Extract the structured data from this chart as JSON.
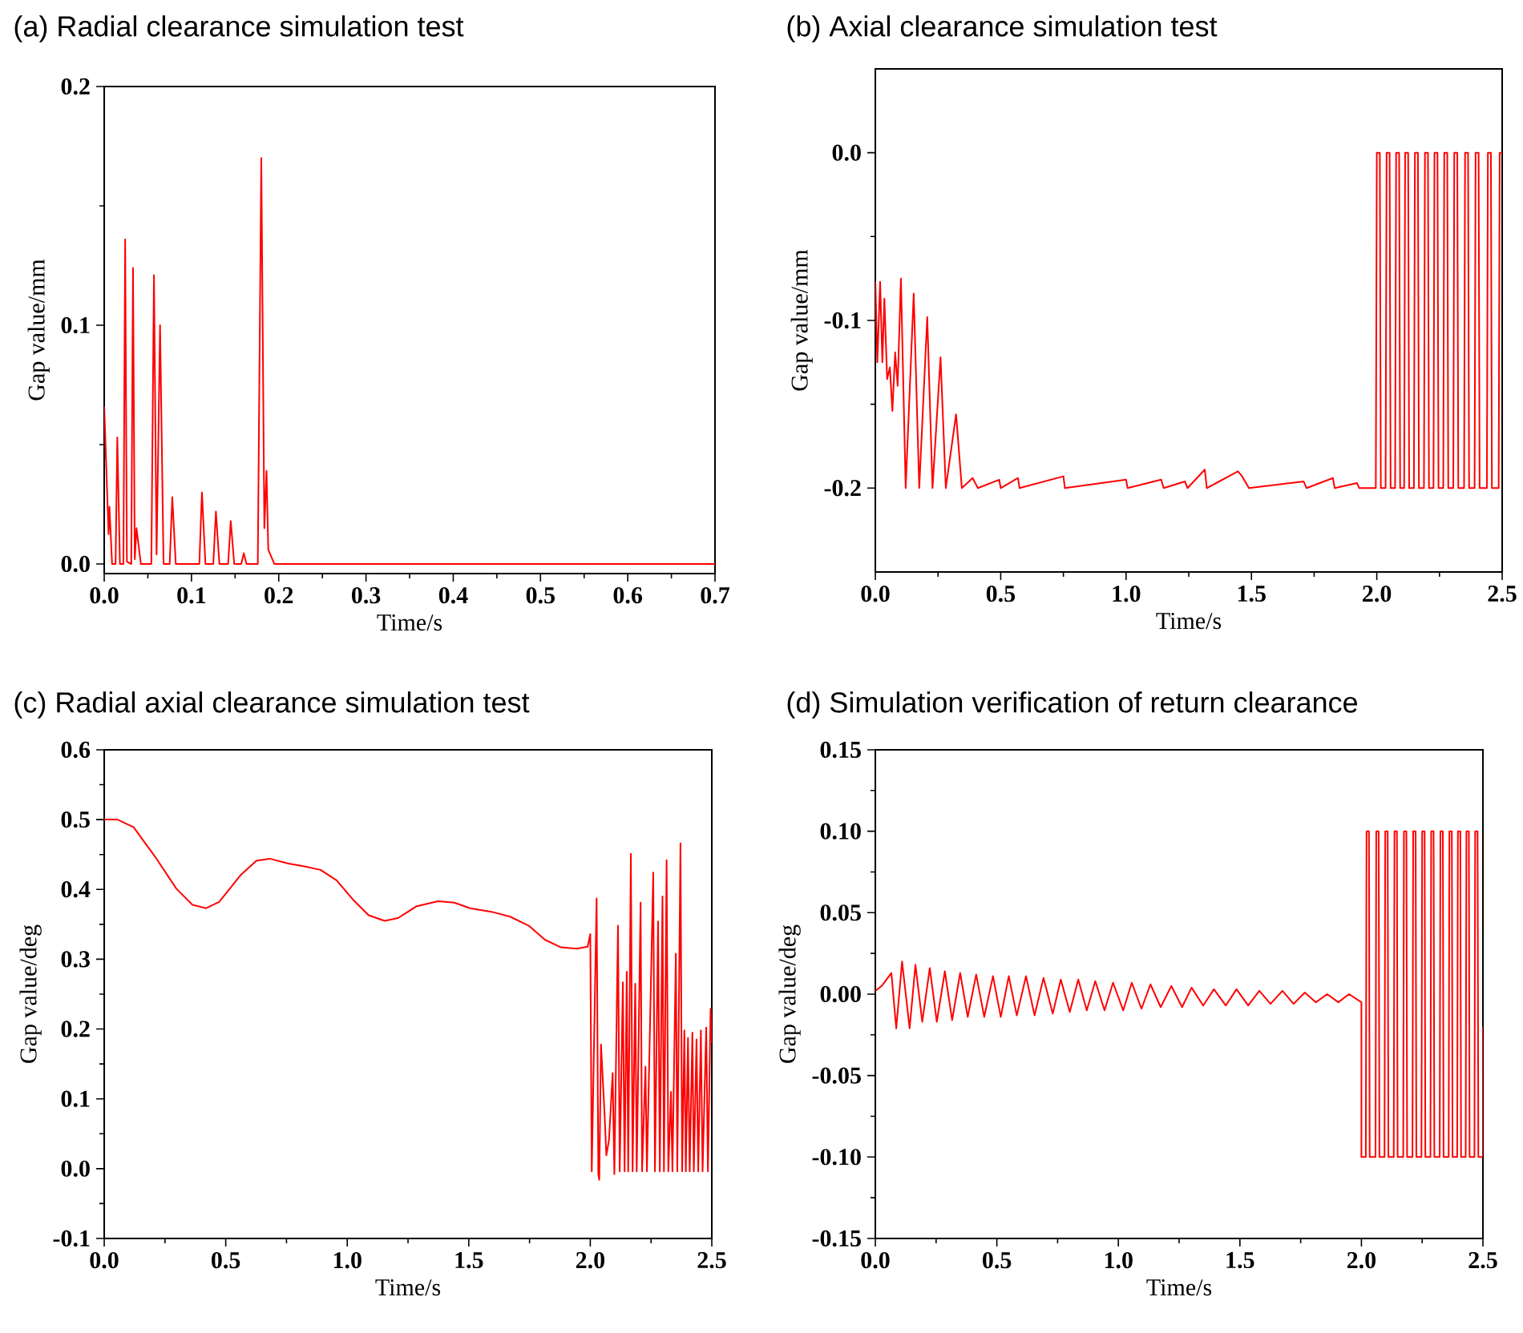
{
  "chart_data": [
    {
      "type": "line",
      "title": "(a) Radial clearance simulation test",
      "xlabel": "Time/s",
      "ylabel": "Gap value/mm",
      "xlim": [
        0,
        0.7
      ],
      "ylim": [
        -0.004,
        0.2
      ],
      "xticks": [
        {
          "value": 0,
          "label": "0.0"
        },
        0.1,
        0.2,
        0.3,
        0.4,
        0.5,
        0.6,
        0.7
      ],
      "yticks": [
        {
          "value": 0,
          "label": "0.0"
        },
        0.1,
        0.2
      ],
      "series": [
        {
          "color": "#ff0000",
          "x": [
            0,
            0.005,
            0.006,
            0.009,
            0.013,
            0.015,
            0.018,
            0.022,
            0.024,
            0.026,
            0.031,
            0.033,
            0.035,
            0.037,
            0.042,
            0.054,
            0.057,
            0.06,
            0.064,
            0.068,
            0.075,
            0.078,
            0.082,
            0.109,
            0.112,
            0.116,
            0.125,
            0.128,
            0.132,
            0.142,
            0.145,
            0.149,
            0.157,
            0.16,
            0.163,
            0.176,
            0.18,
            0.1835,
            0.186,
            0.188,
            0.195,
            0.7
          ],
          "values": [
            0.066,
            0.0125,
            0.024,
            0,
            0,
            0.053,
            0,
            0,
            0.136,
            0.001,
            0,
            0.124,
            0.002,
            0.015,
            0,
            0,
            0.121,
            0.004,
            0.1,
            0,
            0,
            0.028,
            0,
            0,
            0.03,
            0,
            0,
            0.022,
            0,
            0,
            0.018,
            0,
            0,
            0.0045,
            0,
            0,
            0.17,
            0.015,
            0.039,
            0.006,
            0,
            0
          ]
        }
      ]
    },
    {
      "type": "line",
      "title": "(b) Axial clearance simulation test",
      "xlabel": "Time/s",
      "ylabel": "Gap value/mm",
      "xlim": [
        0,
        2.5
      ],
      "ylim": [
        -0.25,
        0.05
      ],
      "xticks": [
        {
          "value": 0,
          "label": "0.0"
        },
        0.5,
        {
          "value": 1,
          "label": "1.0"
        },
        1.5,
        {
          "value": 2,
          "label": "2.0"
        },
        2.5
      ],
      "yticks": [
        -0.2,
        -0.1,
        {
          "value": 0,
          "label": "0.0"
        }
      ],
      "series": [
        {
          "color": "#ff0000",
          "x": [
            0,
            0.008,
            0.019,
            0.028,
            0.036,
            0.047,
            0.058,
            0.068,
            0.079,
            0.089,
            0.102,
            0.121,
            0.153,
            0.175,
            0.207,
            0.228,
            0.26,
            0.281,
            0.322,
            0.345,
            0.388,
            0.409,
            0.494,
            0.5,
            0.569,
            0.575,
            0.75,
            0.756,
            1.0,
            1.006,
            1.14,
            1.15,
            1.235,
            1.245,
            1.314,
            1.322,
            1.446,
            1.463,
            1.49,
            1.708,
            1.72,
            1.825,
            1.832,
            1.921,
            1.93,
            1.996,
            2.0,
            2.012,
            2.016,
            2.035,
            2.039,
            2.051,
            2.055,
            2.073,
            2.077,
            2.089,
            2.093,
            2.109,
            2.113,
            2.125,
            2.129,
            2.148,
            2.152,
            2.164,
            2.168,
            2.188,
            2.192,
            2.204,
            2.208,
            2.226,
            2.23,
            2.242,
            2.246,
            2.265,
            2.269,
            2.281,
            2.285,
            2.305,
            2.309,
            2.321,
            2.325,
            2.348,
            2.352,
            2.364,
            2.368,
            2.39,
            2.394,
            2.406,
            2.41,
            2.439,
            2.443,
            2.455,
            2.459,
            2.486,
            2.49,
            2.5
          ],
          "values": [
            -0.077,
            -0.125,
            -0.077,
            -0.125,
            -0.087,
            -0.135,
            -0.128,
            -0.154,
            -0.119,
            -0.139,
            -0.075,
            -0.2,
            -0.084,
            -0.2,
            -0.098,
            -0.2,
            -0.122,
            -0.2,
            -0.156,
            -0.2,
            -0.194,
            -0.2,
            -0.195,
            -0.2,
            -0.194,
            -0.2,
            -0.193,
            -0.2,
            -0.195,
            -0.2,
            -0.195,
            -0.2,
            -0.196,
            -0.2,
            -0.189,
            -0.2,
            -0.19,
            -0.193,
            -0.2,
            -0.196,
            -0.2,
            -0.194,
            -0.2,
            -0.197,
            -0.2,
            -0.2,
            0,
            0,
            -0.2,
            -0.2,
            0,
            0,
            -0.2,
            -0.2,
            0,
            0,
            -0.2,
            -0.2,
            0,
            0,
            -0.2,
            -0.2,
            0,
            0,
            -0.2,
            -0.2,
            0,
            0,
            -0.2,
            -0.2,
            0,
            0,
            -0.2,
            -0.2,
            0,
            0,
            -0.2,
            -0.2,
            0,
            0,
            -0.2,
            -0.2,
            0,
            0,
            -0.2,
            -0.2,
            0,
            0,
            -0.2,
            -0.2,
            0,
            0,
            -0.2,
            -0.2,
            0,
            0
          ]
        }
      ]
    },
    {
      "type": "line",
      "title": "(c) Radial axial clearance simulation test",
      "xlabel": "Time/s",
      "ylabel": "Gap value/deg",
      "xlim": [
        0,
        2.5
      ],
      "ylim": [
        -0.1,
        0.6
      ],
      "xticks": [
        {
          "value": 0,
          "label": "0.0"
        },
        0.5,
        {
          "value": 1,
          "label": "1.0"
        },
        1.5,
        {
          "value": 2,
          "label": "2.0"
        },
        2.5
      ],
      "yticks": [
        -0.1,
        {
          "value": 0,
          "label": "0.0"
        },
        0.1,
        0.2,
        0.3,
        0.4,
        0.5,
        0.6
      ],
      "series": [
        {
          "color": "#ff0000",
          "x": [
            0,
            0.055,
            0.121,
            0.209,
            0.297,
            0.363,
            0.418,
            0.473,
            0.56,
            0.626,
            0.681,
            0.758,
            0.824,
            0.89,
            0.956,
            1.022,
            1.088,
            1.154,
            1.209,
            1.286,
            1.374,
            1.44,
            1.505,
            1.593,
            1.67,
            1.747,
            1.813,
            1.879,
            1.945,
            1.989,
            2.0,
            2.006,
            2.026,
            2.033,
            2.037,
            2.044,
            2.059,
            2.066,
            2.077,
            2.092,
            2.099,
            2.114,
            2.121,
            2.134,
            2.141,
            2.15,
            2.156,
            2.167,
            2.174,
            2.185,
            2.191,
            2.207,
            2.213,
            2.227,
            2.233,
            2.259,
            2.266,
            2.279,
            2.286,
            2.297,
            2.303,
            2.314,
            2.321,
            2.332,
            2.338,
            2.352,
            2.358,
            2.371,
            2.378,
            2.387,
            2.393,
            2.402,
            2.409,
            2.42,
            2.426,
            2.437,
            2.444,
            2.455,
            2.462,
            2.477,
            2.484,
            2.495,
            2.5
          ],
          "values": [
            0.5,
            0.5,
            0.489,
            0.447,
            0.401,
            0.378,
            0.373,
            0.382,
            0.42,
            0.441,
            0.444,
            0.437,
            0.433,
            0.428,
            0.413,
            0.386,
            0.363,
            0.355,
            0.359,
            0.376,
            0.383,
            0.381,
            0.373,
            0.368,
            0.361,
            0.348,
            0.328,
            0.317,
            0.315,
            0.318,
            0.336,
            -0.004,
            0.387,
            -0.008,
            -0.016,
            0.178,
            0.076,
            0.019,
            0.041,
            0.137,
            -0.008,
            0.348,
            -0.004,
            0.267,
            -0.004,
            0.282,
            -0.004,
            0.451,
            -0.004,
            0.265,
            -0.004,
            0.381,
            -0.004,
            0.146,
            -0.004,
            0.424,
            -0.004,
            0.354,
            -0.004,
            0.39,
            -0.004,
            0.442,
            -0.004,
            0.11,
            -0.004,
            0.308,
            -0.004,
            0.466,
            -0.004,
            0.198,
            -0.004,
            0.187,
            -0.004,
            0.195,
            -0.004,
            0.185,
            -0.004,
            0.198,
            -0.004,
            0.202,
            -0.004,
            0.229,
            0.18
          ]
        }
      ]
    },
    {
      "type": "line",
      "title": "(d) Simulation verification of return clearance",
      "xlabel": "Time/s",
      "ylabel": "Gap value/deg",
      "xlim": [
        0,
        2.5
      ],
      "ylim": [
        -0.15,
        0.15
      ],
      "xticks": [
        {
          "value": 0,
          "label": "0.0"
        },
        0.5,
        {
          "value": 1,
          "label": "1.0"
        },
        1.5,
        {
          "value": 2,
          "label": "2.0"
        },
        2.5
      ],
      "yticks": [
        -0.15,
        {
          "value": -0.1,
          "label": "-0.10"
        },
        -0.05,
        {
          "value": 0,
          "label": "0.00"
        },
        0.05,
        {
          "value": 0.1,
          "label": "0.10"
        },
        0.15
      ],
      "series": [
        {
          "color": "#ff0000",
          "x": [
            0,
            0.026,
            0.066,
            0.086,
            0.11,
            0.141,
            0.165,
            0.193,
            0.224,
            0.253,
            0.286,
            0.316,
            0.349,
            0.38,
            0.415,
            0.448,
            0.484,
            0.516,
            0.549,
            0.582,
            0.62,
            0.655,
            0.692,
            0.73,
            0.763,
            0.8,
            0.835,
            0.87,
            0.905,
            0.943,
            0.978,
            1.02,
            1.055,
            1.095,
            1.132,
            1.174,
            1.218,
            1.262,
            1.301,
            1.349,
            1.393,
            1.442,
            1.486,
            1.534,
            1.58,
            1.626,
            1.675,
            1.721,
            1.767,
            1.813,
            1.859,
            1.905,
            1.949,
            2.0,
            2.0,
            2.018,
            2.021,
            2.031,
            2.034,
            2.058,
            2.061,
            2.071,
            2.074,
            2.095,
            2.098,
            2.108,
            2.111,
            2.133,
            2.136,
            2.146,
            2.149,
            2.172,
            2.175,
            2.185,
            2.188,
            2.21,
            2.213,
            2.223,
            2.226,
            2.247,
            2.25,
            2.26,
            2.263,
            2.284,
            2.287,
            2.297,
            2.3,
            2.322,
            2.325,
            2.335,
            2.338,
            2.359,
            2.362,
            2.372,
            2.375,
            2.394,
            2.397,
            2.407,
            2.41,
            2.429,
            2.432,
            2.442,
            2.445,
            2.465,
            2.468,
            2.478,
            2.481,
            2.5,
            2.5
          ],
          "values": [
            0.002,
            0.005,
            0.013,
            -0.021,
            0.02,
            -0.021,
            0.018,
            -0.017,
            0.016,
            -0.017,
            0.014,
            -0.016,
            0.013,
            -0.014,
            0.012,
            -0.014,
            0.011,
            -0.014,
            0.011,
            -0.013,
            0.011,
            -0.013,
            0.01,
            -0.012,
            0.009,
            -0.011,
            0.009,
            -0.01,
            0.008,
            -0.01,
            0.007,
            -0.01,
            0.007,
            -0.009,
            0.006,
            -0.008,
            0.005,
            -0.008,
            0.004,
            -0.007,
            0.003,
            -0.007,
            0.003,
            -0.007,
            0.002,
            -0.006,
            0.002,
            -0.006,
            0.001,
            -0.005,
            0,
            -0.005,
            0,
            -0.005,
            -0.1,
            -0.1,
            0.1,
            0.1,
            -0.1,
            -0.1,
            0.1,
            0.1,
            -0.1,
            -0.1,
            0.1,
            0.1,
            -0.1,
            -0.1,
            0.1,
            0.1,
            -0.1,
            -0.1,
            0.1,
            0.1,
            -0.1,
            -0.1,
            0.1,
            0.1,
            -0.1,
            -0.1,
            0.1,
            0.1,
            -0.1,
            -0.1,
            0.1,
            0.1,
            -0.1,
            -0.1,
            0.1,
            0.1,
            -0.1,
            -0.1,
            0.1,
            0.1,
            -0.1,
            -0.1,
            0.1,
            0.1,
            -0.1,
            -0.1,
            0.1,
            0.1,
            -0.1,
            -0.1,
            0.1,
            0.1,
            -0.1,
            -0.1,
            -0.02
          ]
        }
      ]
    }
  ]
}
